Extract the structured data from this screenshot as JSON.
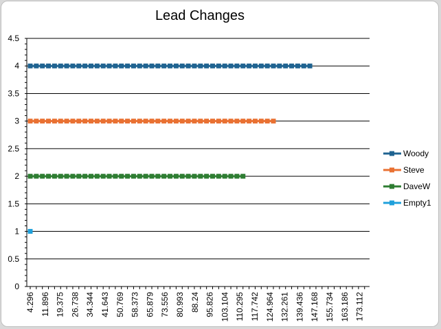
{
  "chart_data": {
    "type": "line",
    "title": "Lead Changes",
    "xlabel": "",
    "ylabel": "",
    "ylim": [
      0,
      4.5
    ],
    "y_ticks": [
      "0",
      "0.5",
      "1",
      "1.5",
      "2",
      "2.5",
      "3",
      "3.5",
      "4",
      "4.5"
    ],
    "x_tick_labels": [
      "4.296",
      "11.896",
      "19.375",
      "26.738",
      "34.344",
      "41.643",
      "50.769",
      "58.373",
      "65.879",
      "73.556",
      "80.993",
      "88.24",
      "95.826",
      "103.104",
      "110.295",
      "117.742",
      "124.964",
      "132.261",
      "139.436",
      "147.168",
      "155.734",
      "163.186",
      "173.112"
    ],
    "grid": "horizontal",
    "legend_position": "right",
    "series": [
      {
        "name": "Woody",
        "color": "#1f6391",
        "value": 4,
        "point_count": 47
      },
      {
        "name": "Steve",
        "color": "#e97132",
        "value": 3,
        "point_count": 41
      },
      {
        "name": "DaveW",
        "color": "#2e7d32",
        "value": 2,
        "point_count": 36
      },
      {
        "name": "Empty1",
        "color": "#1fa0db",
        "value": 1,
        "point_count": 1
      }
    ]
  }
}
